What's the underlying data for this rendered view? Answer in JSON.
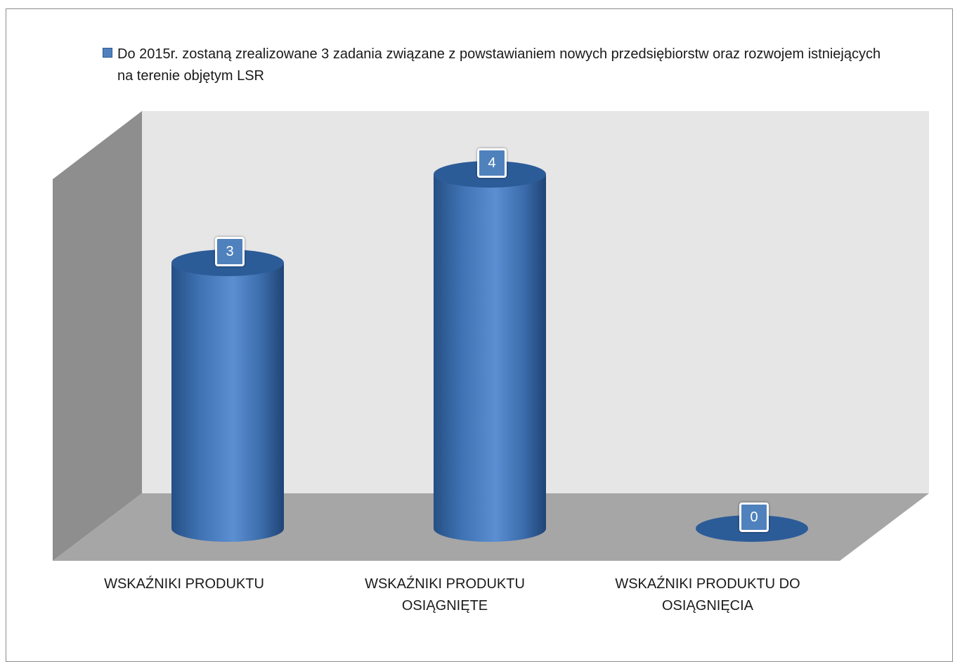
{
  "chart_data": {
    "type": "bar",
    "style": "3d-cylinder",
    "categories": [
      "WSKAŹNIKI PRODUKTU",
      "WSKAŹNIKI PRODUKTU OSIĄGNIĘTE",
      "WSKAŹNIKI PRODUKTU DO OSIĄGNIĘCIA"
    ],
    "series": [
      {
        "name": "Do 2015r. zostaną zrealizowane 3 zadania  związane z powstawianiem nowych przedsiębiorstw oraz rozwojem istniejących na terenie objętym LSR",
        "values": [
          3,
          4,
          0
        ],
        "color": "#4f81bd"
      }
    ],
    "data_labels": [
      "3",
      "4",
      "0"
    ],
    "title": "",
    "xlabel": "",
    "ylabel": "",
    "ylim": [
      0,
      4.4
    ],
    "grid": false,
    "legend_position": "top"
  }
}
